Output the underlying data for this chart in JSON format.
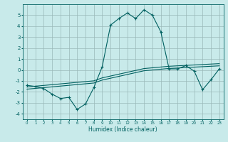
{
  "xlabel": "Humidex (Indice chaleur)",
  "x": [
    0,
    1,
    2,
    3,
    4,
    5,
    6,
    7,
    8,
    9,
    10,
    11,
    12,
    13,
    14,
    15,
    16,
    17,
    18,
    19,
    20,
    21,
    22,
    23
  ],
  "y_curve": [
    -1.4,
    -1.5,
    -1.7,
    -2.2,
    -2.6,
    -2.5,
    -3.6,
    -3.1,
    -1.6,
    0.3,
    4.1,
    4.7,
    5.2,
    4.7,
    5.5,
    5.0,
    3.5,
    0.1,
    0.1,
    0.4,
    -0.1,
    -1.8,
    -0.9,
    0.1
  ],
  "y_line1": [
    -1.55,
    -1.48,
    -1.41,
    -1.34,
    -1.27,
    -1.2,
    -1.13,
    -1.06,
    -0.99,
    -0.72,
    -0.55,
    -0.38,
    -0.21,
    -0.04,
    0.13,
    0.2,
    0.27,
    0.34,
    0.38,
    0.42,
    0.46,
    0.5,
    0.54,
    0.58
  ],
  "y_line2": [
    -1.75,
    -1.68,
    -1.61,
    -1.54,
    -1.47,
    -1.4,
    -1.33,
    -1.26,
    -1.19,
    -0.92,
    -0.75,
    -0.58,
    -0.41,
    -0.24,
    -0.07,
    0.0,
    0.07,
    0.14,
    0.18,
    0.22,
    0.26,
    0.3,
    0.34,
    0.38
  ],
  "line_color": "#006060",
  "bg_color": "#c8eaea",
  "grid_color": "#9ab8b8",
  "ylim": [
    -4.5,
    6.0
  ],
  "xlim": [
    -0.5,
    23.5
  ],
  "yticks": [
    -4,
    -3,
    -2,
    -1,
    0,
    1,
    2,
    3,
    4,
    5
  ],
  "xticks": [
    0,
    1,
    2,
    3,
    4,
    5,
    6,
    7,
    8,
    9,
    10,
    11,
    12,
    13,
    14,
    15,
    16,
    17,
    18,
    19,
    20,
    21,
    22,
    23
  ]
}
